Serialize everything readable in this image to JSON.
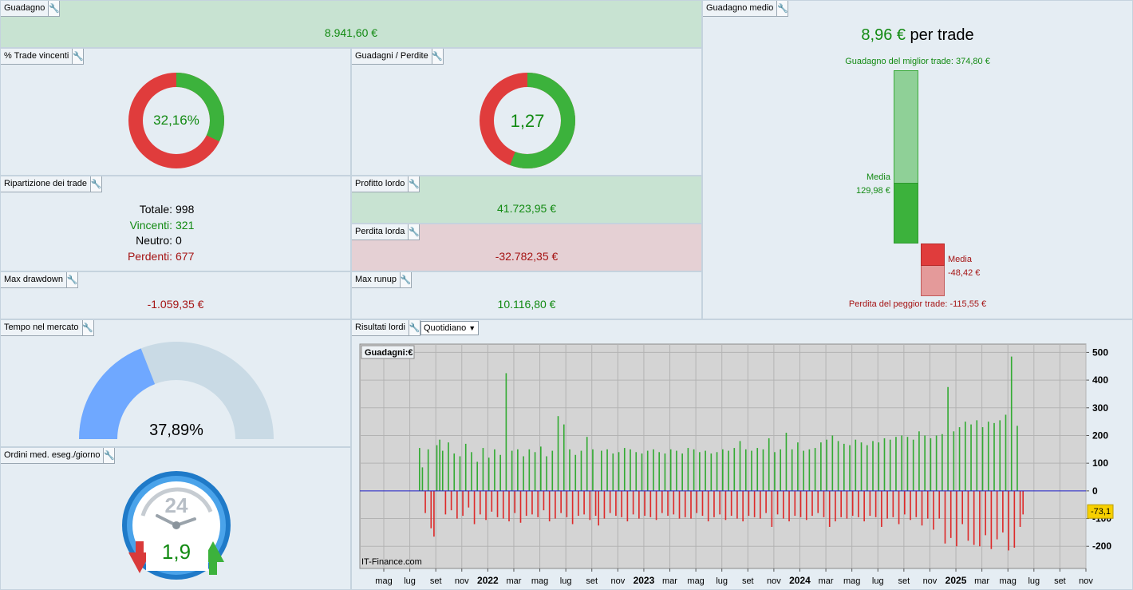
{
  "panels": {
    "profit": {
      "title": "Guadagno",
      "value": "8.941,60 €"
    },
    "avg": {
      "title": "Guadagno medio",
      "value": "8,96 €",
      "unit": " per trade",
      "best_label": "Guadagno del miglior trade: 374,80 €",
      "worst_label": "Perdita del peggior trade: -115,55 €",
      "win_media_label": "Media",
      "win_media_value": "129,98 €",
      "loss_media_label": "Media",
      "loss_media_value": "-48,42 €"
    },
    "winpct": {
      "title": "% Trade vincenti",
      "value": "32,16%",
      "fraction": 0.3216
    },
    "winloss": {
      "title": "Guadagni / Perdite",
      "value": "1,27"
    },
    "breakdown": {
      "title": "Ripartizione dei trade",
      "rows": [
        {
          "label": "Totale:",
          "value": "998"
        },
        {
          "label": "Vincenti:",
          "value": "321"
        },
        {
          "label": "Neutro:",
          "value": "0"
        },
        {
          "label": "Perdenti:",
          "value": "677"
        }
      ]
    },
    "gross_profit": {
      "title": "Profitto lordo",
      "value": "41.723,95 €"
    },
    "gross_loss": {
      "title": "Perdita lorda",
      "value": "-32.782,35 €"
    },
    "max_dd": {
      "title": "Max drawdown",
      "value": "-1.059,35 €"
    },
    "max_runup": {
      "title": "Max runup",
      "value": "10.116,80 €"
    },
    "time_market": {
      "title": "Tempo nel mercato",
      "value": "37,89%",
      "fraction": 0.3789
    },
    "orders": {
      "title": "Ordini med. eseg./giorno",
      "value": "1,9",
      "dial_label": "24"
    },
    "results": {
      "title": "Risultati lordi",
      "period": "Quotidiano"
    }
  },
  "chart_data": {
    "type": "bar",
    "title": "Guadagni:€",
    "watermark": "IT-Finance.com",
    "ylim": [
      -280,
      530
    ],
    "y_ticks": [
      "500",
      "400",
      "300",
      "200",
      "100",
      "0",
      "-100",
      "-200"
    ],
    "current_value": "-73,1",
    "x_tick_labels": [
      "mag",
      "lug",
      "set",
      "nov",
      "2022",
      "mar",
      "mag",
      "lug",
      "set",
      "nov",
      "2023",
      "mar",
      "mag",
      "lug",
      "set",
      "nov",
      "2024",
      "mar",
      "mag",
      "lug",
      "set",
      "nov",
      "2025",
      "mar",
      "mag",
      "lug",
      "set",
      "nov"
    ],
    "series": [
      {
        "values": [
          155,
          85,
          -80,
          150,
          -135,
          -165,
          165,
          185,
          145,
          -85,
          175,
          -70,
          135,
          -100,
          125,
          -90,
          170,
          -60,
          140,
          -120,
          105,
          -85,
          155,
          -105,
          120,
          -75,
          150,
          -95,
          130,
          -100,
          425,
          -110,
          145,
          -80,
          150,
          -115,
          125,
          -90,
          150,
          -85,
          140,
          -95,
          160,
          -70,
          125,
          -110,
          145,
          -100,
          270,
          -80,
          240,
          -95,
          150,
          -120,
          130,
          -90,
          145,
          -85,
          195,
          -105,
          150,
          -90,
          -125,
          145,
          -100,
          150,
          -80,
          135,
          -90,
          140,
          -95,
          155,
          -110,
          150,
          -85,
          140,
          -100,
          135,
          -90,
          145,
          -95,
          150,
          -105,
          140,
          -80,
          135,
          -90,
          150,
          -85,
          145,
          -100,
          135,
          -95,
          155,
          -100,
          150,
          -80,
          140,
          -90,
          145,
          -110,
          135,
          -95,
          140,
          -85,
          150,
          -105,
          145,
          -90,
          155,
          -100,
          180,
          -110,
          150,
          -90,
          145,
          -95,
          155,
          -100,
          150,
          -80,
          190,
          -130,
          140,
          -85,
          150,
          -100,
          210,
          -110,
          150,
          -90,
          175,
          -95,
          145,
          -105,
          150,
          -90,
          155,
          -80,
          175,
          -95,
          185,
          -130,
          200,
          -110,
          180,
          -95,
          170,
          -100,
          165,
          -90,
          185,
          -95,
          175,
          -110,
          165,
          -90,
          180,
          -95,
          175,
          -130,
          190,
          -100,
          185,
          -95,
          195,
          -120,
          200,
          -85,
          195,
          -105,
          185,
          -95,
          215,
          -125,
          200,
          -100,
          190,
          -140,
          200,
          -100,
          205,
          -190,
          375,
          -170,
          215,
          -200,
          230,
          -120,
          250,
          -180,
          240,
          -195,
          255,
          -200,
          230,
          -160,
          250,
          -210,
          245,
          -175,
          255,
          -150,
          275,
          -215,
          485,
          -205,
          235,
          -130,
          -85
        ]
      }
    ],
    "y_zero_line": true,
    "grid": true
  }
}
